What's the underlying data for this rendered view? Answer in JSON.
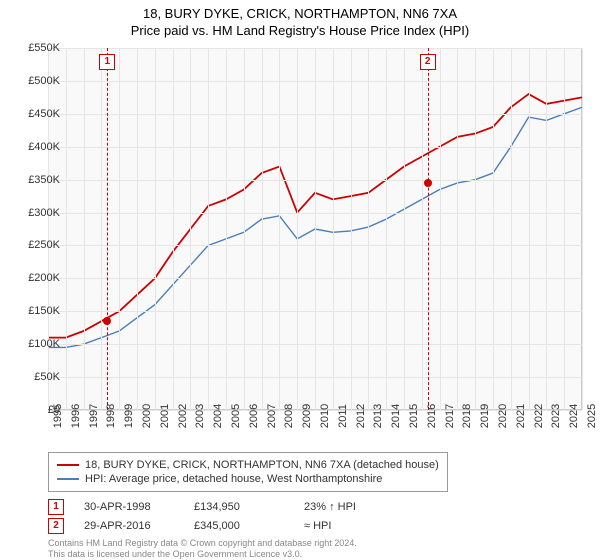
{
  "title": {
    "main": "18, BURY DYKE, CRICK, NORTHAMPTON, NN6 7XA",
    "sub": "Price paid vs. HM Land Registry's House Price Index (HPI)"
  },
  "chart": {
    "type": "line",
    "background_color": "#f9f9f9",
    "grid_color": "#e5e5e5",
    "border_color": "#cccccc",
    "x_years": [
      1995,
      1996,
      1997,
      1998,
      1999,
      2000,
      2001,
      2002,
      2003,
      2004,
      2005,
      2006,
      2007,
      2008,
      2009,
      2010,
      2011,
      2012,
      2013,
      2014,
      2015,
      2016,
      2017,
      2018,
      2019,
      2020,
      2021,
      2022,
      2023,
      2024,
      2025
    ],
    "ylim": [
      0,
      550000
    ],
    "ytick_step": 50000,
    "ytick_prefix": "£",
    "ytick_suffix": "K",
    "tick_fontsize": 11,
    "series": [
      {
        "name": "18, BURY DYKE, CRICK, NORTHAMPTON, NN6 7XA (detached house)",
        "color": "#cc0000",
        "line_width": 1.8,
        "values": [
          110000,
          110000,
          120000,
          134950,
          150000,
          175000,
          200000,
          240000,
          275000,
          310000,
          320000,
          335000,
          360000,
          370000,
          300000,
          330000,
          320000,
          325000,
          330000,
          350000,
          370000,
          385000,
          400000,
          415000,
          420000,
          430000,
          460000,
          480000,
          465000,
          470000,
          475000
        ]
      },
      {
        "name": "HPI: Average price, detached house, West Northamptonshire",
        "color": "#4a7ebb",
        "line_width": 1.4,
        "values": [
          95000,
          95000,
          100000,
          110000,
          120000,
          140000,
          160000,
          190000,
          220000,
          250000,
          260000,
          270000,
          290000,
          295000,
          260000,
          275000,
          270000,
          272000,
          278000,
          290000,
          305000,
          320000,
          335000,
          345000,
          350000,
          360000,
          400000,
          445000,
          440000,
          450000,
          460000
        ]
      }
    ],
    "markers": [
      {
        "num": "1",
        "year": 1998.33,
        "value": 134950,
        "color": "#cc0000"
      },
      {
        "num": "2",
        "year": 2016.33,
        "value": 345000,
        "color": "#cc0000"
      }
    ],
    "marker_line_color": "#cc0000"
  },
  "legend": {
    "items": [
      {
        "color": "#cc0000",
        "label": "18, BURY DYKE, CRICK, NORTHAMPTON, NN6 7XA (detached house)"
      },
      {
        "color": "#4a7ebb",
        "label": "HPI: Average price, detached house, West Northamptonshire"
      }
    ]
  },
  "transactions": [
    {
      "num": "1",
      "date": "30-APR-1998",
      "price": "£134,950",
      "delta": "23% ↑ HPI"
    },
    {
      "num": "2",
      "date": "29-APR-2016",
      "price": "£345,000",
      "delta": "≈ HPI"
    }
  ],
  "attribution": {
    "line1": "Contains HM Land Registry data © Crown copyright and database right 2024.",
    "line2": "This data is licensed under the Open Government Licence v3.0."
  }
}
